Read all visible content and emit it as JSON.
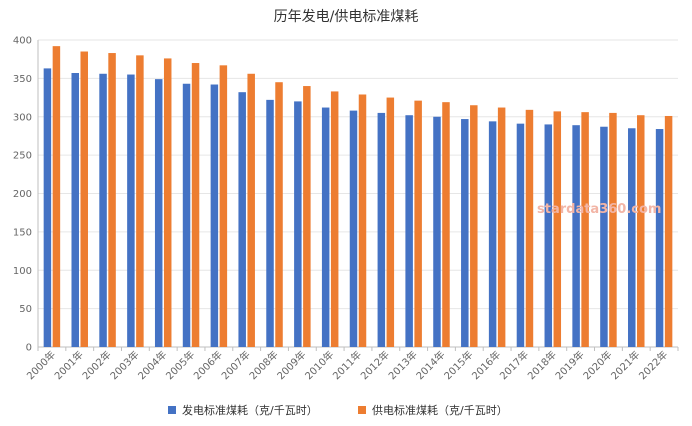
{
  "chart_data": {
    "type": "bar",
    "title": "历年发电/供电标准煤耗",
    "categories": [
      "2000年",
      "2001年",
      "2002年",
      "2003年",
      "2004年",
      "2005年",
      "2006年",
      "2007年",
      "2008年",
      "2009年",
      "2010年",
      "2011年",
      "2012年",
      "2013年",
      "2014年",
      "2015年",
      "2016年",
      "2017年",
      "2018年",
      "2019年",
      "2020年",
      "2021年",
      "2022年"
    ],
    "series": [
      {
        "name": "发电标准煤耗（克/千瓦时）",
        "color": "#4472c4",
        "values": [
          363,
          357,
          356,
          355,
          349,
          343,
          342,
          332,
          322,
          320,
          312,
          308,
          305,
          302,
          300,
          297,
          294,
          291,
          290,
          289,
          287,
          285,
          284
        ]
      },
      {
        "name": "供电标准煤耗（克/千瓦时）",
        "color": "#ed7d31",
        "values": [
          392,
          385,
          383,
          380,
          376,
          370,
          367,
          356,
          345,
          340,
          333,
          329,
          325,
          321,
          319,
          315,
          312,
          309,
          307,
          306,
          305,
          302,
          301
        ]
      }
    ],
    "ylim": [
      0,
      400
    ],
    "yticks": [
      0,
      50,
      100,
      150,
      200,
      250,
      300,
      350,
      400
    ],
    "grid": true,
    "legend": "bottom",
    "watermark": "stardata360.com"
  }
}
